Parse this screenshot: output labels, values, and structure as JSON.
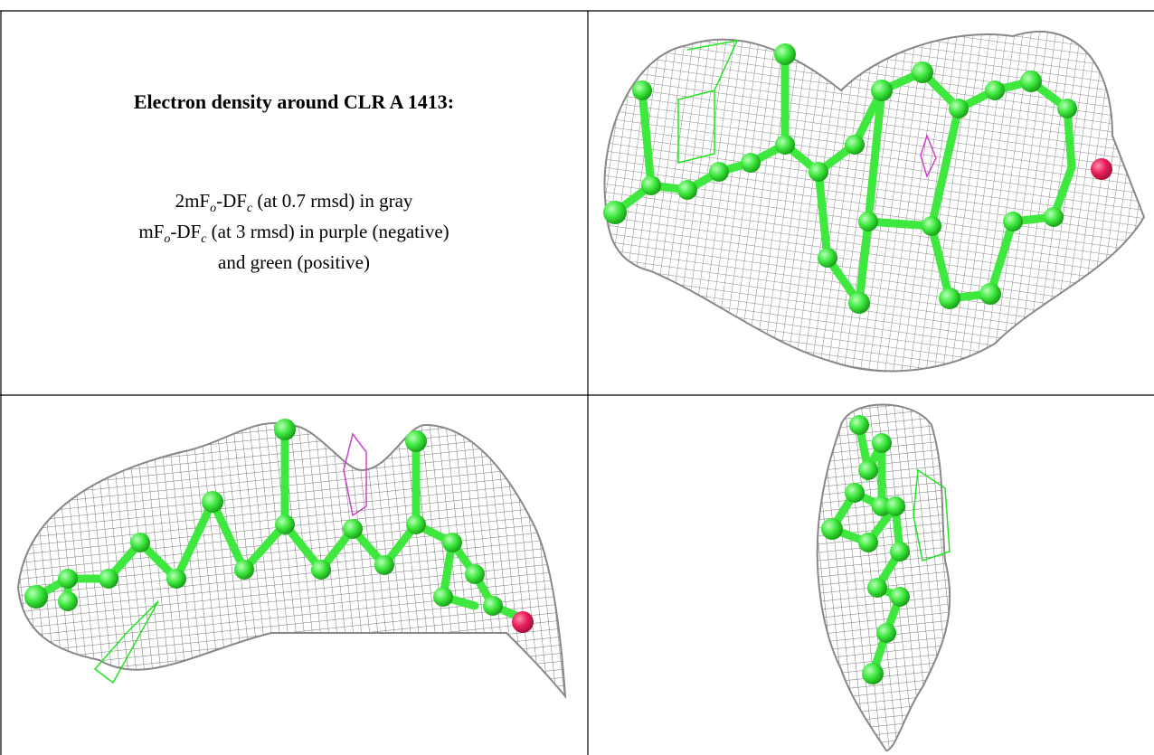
{
  "figure": {
    "title": "Electron density around CLR A 1413:",
    "caption_lines": [
      [
        "2mF",
        "o",
        "-DF",
        "c",
        " (at 0.7 rmsd) in gray"
      ],
      [
        "mF",
        "o",
        "-DF",
        "c",
        " (at 3 rmsd) in purple (negative)"
      ],
      [
        "and green (positive)"
      ]
    ]
  }
}
